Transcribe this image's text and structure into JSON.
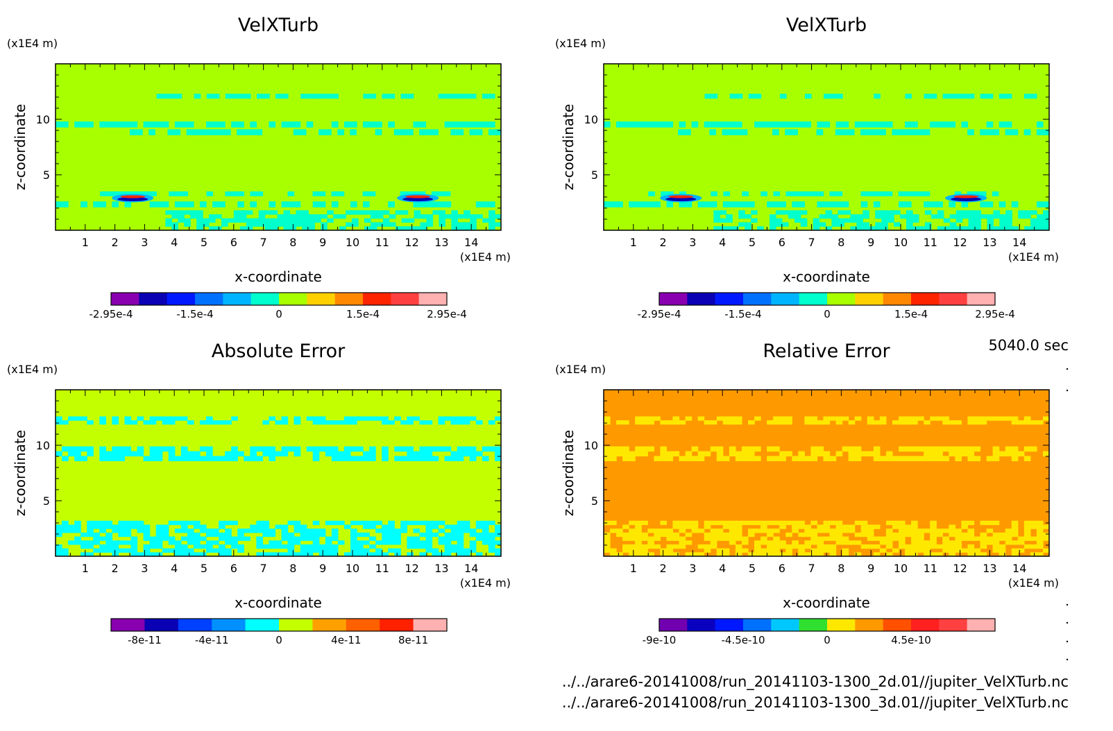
{
  "timestamp": "5040.0 sec",
  "files": [
    "../../arare6-20141008/run_20141103-1300_2d.01//jupiter_VelXTurb.nc",
    "../../arare6-20141008/run_20141103-1300_3d.01//jupiter_VelXTurb.nc"
  ],
  "chart_data": [
    {
      "type": "heatmap",
      "title": "VelXTurb",
      "xlabel": "x-coordinate",
      "ylabel": "z-coordinate",
      "x_unit": "(x1E4 m)",
      "y_unit": "(x1E4 m)",
      "xlim": [
        0,
        15
      ],
      "ylim": [
        0,
        15
      ],
      "x_ticks": [
        1,
        2,
        3,
        4,
        5,
        6,
        7,
        8,
        9,
        10,
        11,
        12,
        13,
        14
      ],
      "y_ticks": [
        5,
        10
      ],
      "background_color": "#a8ff00",
      "colorbar": {
        "colors": [
          "#8800b0",
          "#0a00b4",
          "#0018ff",
          "#0070ff",
          "#00b4ff",
          "#00ffcc",
          "#a8ff00",
          "#ffd000",
          "#ff8800",
          "#ff2400",
          "#ff4040",
          "#ffb0b0"
        ],
        "tick_labels": [
          "-2.95e-4",
          "-1.5e-4",
          "0",
          "1.5e-4",
          "2.95e-4"
        ],
        "tick_index": [
          0,
          3,
          6,
          9,
          12
        ]
      },
      "bands": [
        {
          "z": 11.9,
          "h": 0.4,
          "x0": 3.4,
          "x1": 15,
          "color": "#00ffcc"
        },
        {
          "z": 9.3,
          "h": 0.5,
          "x0": 0,
          "x1": 15,
          "color": "#00ffcc"
        },
        {
          "z": 8.6,
          "h": 0.5,
          "x0": 2.5,
          "x1": 15,
          "color": "#00ffcc"
        },
        {
          "z": 3.1,
          "h": 0.4,
          "x0": 1.5,
          "x1": 13.5,
          "color": "#00ffcc"
        },
        {
          "z": 2.1,
          "h": 0.5,
          "x0": 0,
          "x1": 15,
          "color": "#00ffcc"
        },
        {
          "z": 0.0,
          "h": 1.8,
          "x0": 3.7,
          "x1": 15,
          "color": "#00ffcc"
        }
      ],
      "features": [
        {
          "x": 2.6,
          "z": 2.9,
          "value": -0.000295
        },
        {
          "x": 12.2,
          "z": 2.9,
          "value": -0.000295
        }
      ]
    },
    {
      "type": "heatmap",
      "title": "VelXTurb",
      "xlabel": "x-coordinate",
      "ylabel": "z-coordinate",
      "x_unit": "(x1E4 m)",
      "y_unit": "(x1E4 m)",
      "xlim": [
        0,
        15
      ],
      "ylim": [
        0,
        15
      ],
      "x_ticks": [
        1,
        2,
        3,
        4,
        5,
        6,
        7,
        8,
        9,
        10,
        11,
        12,
        13,
        14
      ],
      "y_ticks": [
        5,
        10
      ],
      "background_color": "#a8ff00",
      "colorbar": {
        "colors": [
          "#8800b0",
          "#0a00b4",
          "#0018ff",
          "#0070ff",
          "#00b4ff",
          "#00ffcc",
          "#a8ff00",
          "#ffd000",
          "#ff8800",
          "#ff2400",
          "#ff4040",
          "#ffb0b0"
        ],
        "tick_labels": [
          "-2.95e-4",
          "-1.5e-4",
          "0",
          "1.5e-4",
          "2.95e-4"
        ],
        "tick_index": [
          0,
          3,
          6,
          9,
          12
        ]
      },
      "bands": [
        {
          "z": 11.9,
          "h": 0.4,
          "x0": 3.4,
          "x1": 15,
          "color": "#00ffcc"
        },
        {
          "z": 9.3,
          "h": 0.5,
          "x0": 0,
          "x1": 15,
          "color": "#00ffcc"
        },
        {
          "z": 8.6,
          "h": 0.5,
          "x0": 2.5,
          "x1": 15,
          "color": "#00ffcc"
        },
        {
          "z": 3.1,
          "h": 0.4,
          "x0": 1.5,
          "x1": 13.5,
          "color": "#00ffcc"
        },
        {
          "z": 2.1,
          "h": 0.5,
          "x0": 0,
          "x1": 15,
          "color": "#00ffcc"
        },
        {
          "z": 0.0,
          "h": 1.8,
          "x0": 3.7,
          "x1": 15,
          "color": "#00ffcc"
        }
      ],
      "features": [
        {
          "x": 2.6,
          "z": 2.9,
          "value": -0.000295
        },
        {
          "x": 12.2,
          "z": 2.9,
          "value": -0.000295
        }
      ]
    },
    {
      "type": "heatmap",
      "title": "Absolute Error",
      "xlabel": "x-coordinate",
      "ylabel": "z-coordinate",
      "x_unit": "(x1E4 m)",
      "y_unit": "(x1E4 m)",
      "xlim": [
        0,
        15
      ],
      "ylim": [
        0,
        15
      ],
      "x_ticks": [
        1,
        2,
        3,
        4,
        5,
        6,
        7,
        8,
        9,
        10,
        11,
        12,
        13,
        14
      ],
      "y_ticks": [
        5,
        10
      ],
      "background_color": "#c4ff00",
      "colorbar": {
        "colors": [
          "#8800b0",
          "#0a00b4",
          "#0040ff",
          "#0090ff",
          "#00ffff",
          "#c4ff00",
          "#ffa000",
          "#ff6000",
          "#ff2000",
          "#ffb0b0"
        ],
        "tick_labels": [
          "-8e-11",
          "-4e-11",
          "0",
          "4e-11",
          "8e-11"
        ],
        "tick_index": [
          1,
          3,
          5,
          7,
          9
        ]
      },
      "bands": [
        {
          "z": 11.9,
          "h": 0.7,
          "x0": 0,
          "x1": 15,
          "color": "#00ffff"
        },
        {
          "z": 8.6,
          "h": 1.3,
          "x0": 0,
          "x1": 15,
          "color": "#00ffff"
        },
        {
          "z": 0.0,
          "h": 3.2,
          "x0": 0,
          "x1": 15,
          "color": "#00ffff"
        }
      ],
      "features": []
    },
    {
      "type": "heatmap",
      "title": "Relative Error",
      "xlabel": "x-coordinate",
      "ylabel": "z-coordinate",
      "x_unit": "(x1E4 m)",
      "y_unit": "(x1E4 m)",
      "xlim": [
        0,
        15
      ],
      "ylim": [
        0,
        15
      ],
      "x_ticks": [
        1,
        2,
        3,
        4,
        5,
        6,
        7,
        8,
        9,
        10,
        11,
        12,
        13,
        14
      ],
      "y_ticks": [
        5,
        10
      ],
      "background_color": "#ff9900",
      "colorbar": {
        "colors": [
          "#7000b0",
          "#0a00c0",
          "#0018ff",
          "#0070ff",
          "#00c8ff",
          "#30e030",
          "#ffe800",
          "#ff9900",
          "#ff5000",
          "#ff2020",
          "#ff4040",
          "#ffb0b0"
        ],
        "tick_labels": [
          "-9e-10",
          "-4.5e-10",
          "0",
          "4.5e-10"
        ],
        "tick_index": [
          0,
          3,
          6,
          9
        ]
      },
      "bands": [
        {
          "z": 11.9,
          "h": 0.7,
          "x0": 0,
          "x1": 15,
          "color": "#ffe800"
        },
        {
          "z": 8.6,
          "h": 1.3,
          "x0": 0,
          "x1": 15,
          "color": "#ffe800"
        },
        {
          "z": 0.0,
          "h": 3.2,
          "x0": 0,
          "x1": 15,
          "color": "#ffe800"
        }
      ],
      "features": []
    }
  ]
}
